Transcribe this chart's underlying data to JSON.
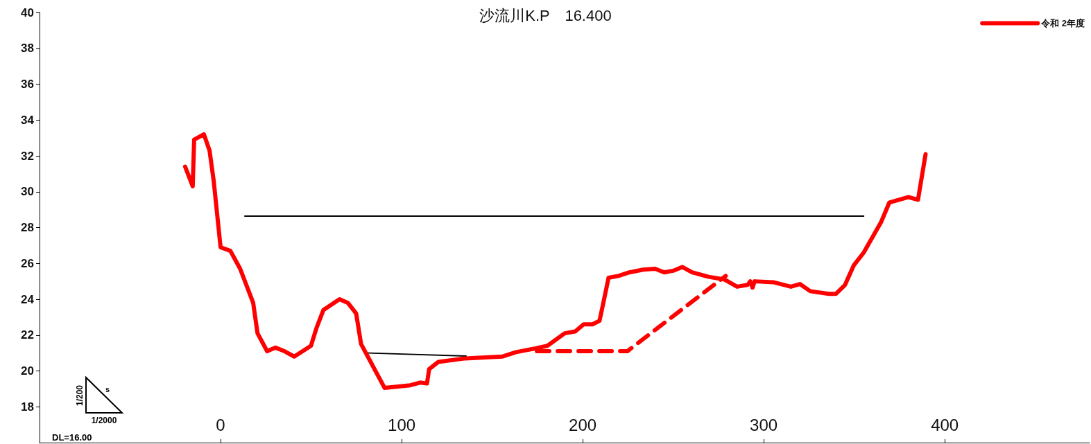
{
  "chart_data": {
    "type": "line",
    "title": "沙流川K.P　16.400",
    "xlim": [
      -100,
      480
    ],
    "xticks": [
      0,
      100,
      200,
      300,
      400
    ],
    "ylim": [
      16,
      40
    ],
    "yticks": [
      18,
      20,
      22,
      24,
      26,
      28,
      30,
      32,
      34,
      36,
      38,
      40
    ],
    "legend": "top right",
    "marker": "none",
    "grid": false,
    "annotations": [
      "DL=16.00",
      "1/200",
      "s",
      "1/2000"
    ],
    "series": [
      {
        "name": "令和 2年度",
        "color": "#ff0000",
        "x": [
          -19.6,
          -15.4,
          -14.6,
          -9.2,
          -6.1,
          -3.8,
          0,
          5.4,
          10.8,
          18,
          20.4,
          25.7,
          30.3,
          35.3,
          40.7,
          49.9,
          53,
          56.8,
          65.7,
          70.3,
          74.9,
          77.6,
          84.5,
          90.6,
          104.8,
          110.2,
          114,
          115.2,
          120.2,
          135.2,
          155.5,
          163.2,
          173.6,
          180.5,
          190.1,
          195.9,
          200.5,
          205.4,
          209.3,
          211.2,
          214.3,
          219.7,
          225.8,
          233.5,
          240,
          245,
          250.4,
          255,
          260.4,
          269.6,
          278.4,
          285.3,
          291.1,
          292.6,
          293.8,
          295,
          305.3,
          315,
          320,
          325.7,
          336,
          339.9,
          344.9,
          349.8,
          355.2,
          364.8,
          369.4,
          379.8,
          385.2,
          389.4
        ],
        "values": [
          31.4,
          30.3,
          32.9,
          33.2,
          32.3,
          30.6,
          26.9,
          26.7,
          25.7,
          23.8,
          22.1,
          21.1,
          21.3,
          21.1,
          20.8,
          21.4,
          22.4,
          23.4,
          24,
          23.8,
          23.2,
          21.5,
          20.2,
          19.05,
          19.2,
          19.35,
          19.3,
          20.1,
          20.5,
          20.7,
          20.8,
          21.05,
          21.25,
          21.4,
          22.1,
          22.2,
          22.6,
          22.6,
          22.8,
          23.7,
          25.2,
          25.3,
          25.5,
          25.65,
          25.7,
          25.5,
          25.6,
          25.8,
          25.5,
          25.25,
          25.1,
          24.7,
          24.8,
          25,
          24.65,
          25,
          24.95,
          24.7,
          24.85,
          24.45,
          24.3,
          24.3,
          24.8,
          25.9,
          26.6,
          28.3,
          29.4,
          29.7,
          29.55,
          32.1
        ]
      },
      {
        "color": "#ff0000",
        "line_style": "dashed",
        "x": [
          174.7,
          224.7,
          279
        ],
        "values": [
          21.1,
          21.1,
          25.3
        ]
      },
      {
        "color": "#000000",
        "x": [
          13.4,
          355.2
        ],
        "values": [
          28.64,
          28.64
        ]
      },
      {
        "color": "#000000",
        "x": [
          81.4,
          135.6
        ],
        "values": [
          21,
          20.83
        ]
      }
    ]
  }
}
